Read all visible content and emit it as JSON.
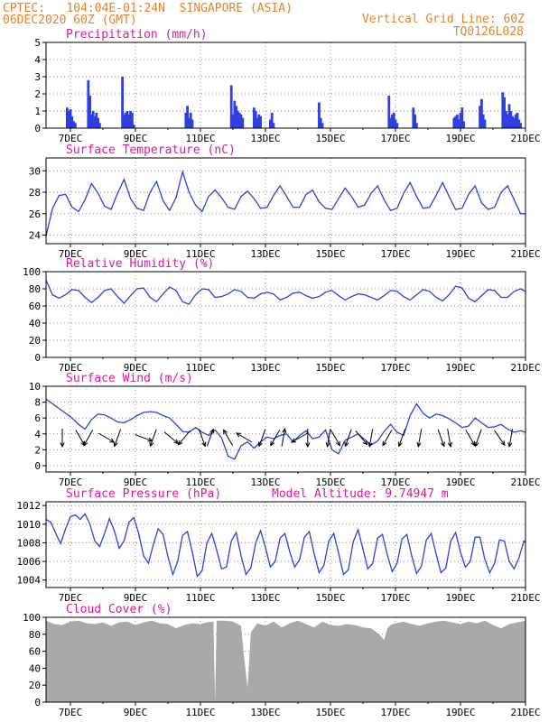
{
  "header": {
    "line1_left": "CPTEC:   104:04E-01:24N  SINGAPORE (ASIA)",
    "line2_left": "06DEC2020 60Z (GMT)",
    "line1_right": "Vertical Grid Line: 60Z",
    "line2_right": "TQ0126L028",
    "model_altitude": "Model Altitude: 9.74947 m"
  },
  "colors": {
    "header": "#e8822c",
    "title": "#e0179e",
    "line": "#2f3fe0",
    "bar": "#2f3fe0",
    "cloud": "#a9a9a9",
    "grid": "#8a8a8a"
  },
  "x_axis": {
    "tick_labels": [
      "7DEC",
      "9DEC",
      "11DEC",
      "13DEC",
      "15DEC",
      "17DEC",
      "19DEC",
      "21DEC"
    ],
    "tick_days": [
      7,
      9,
      11,
      13,
      15,
      17,
      19,
      21
    ],
    "start_day": 6.25,
    "end_day": 21.0
  },
  "chart_data": [
    {
      "type": "bar",
      "title": "Precipitation (mm/h)",
      "ylim": [
        0,
        5
      ],
      "yticks": [
        0,
        1,
        2,
        3,
        4,
        5
      ],
      "x": [
        6.9,
        6.95,
        7.0,
        7.05,
        7.1,
        7.15,
        7.55,
        7.6,
        7.65,
        7.7,
        7.75,
        7.8,
        7.85,
        7.9,
        8.6,
        8.65,
        8.7,
        8.75,
        8.8,
        8.85,
        8.9,
        8.95,
        10.55,
        10.6,
        10.65,
        10.7,
        10.75,
        11.95,
        12.0,
        12.05,
        12.1,
        12.15,
        12.2,
        12.25,
        12.3,
        12.65,
        12.7,
        12.75,
        12.8,
        12.85,
        13.15,
        13.2,
        13.25,
        14.65,
        14.7,
        14.75,
        16.8,
        16.85,
        16.9,
        16.95,
        17.0,
        17.05,
        17.55,
        17.6,
        17.65,
        18.8,
        18.85,
        18.9,
        18.95,
        19.0,
        19.05,
        19.1,
        19.6,
        19.65,
        19.7,
        19.75,
        20.3,
        20.35,
        20.4,
        20.45,
        20.5,
        20.55,
        20.6,
        20.65,
        20.7,
        20.75,
        20.8,
        20.85
      ],
      "values": [
        1.2,
        1.0,
        1.1,
        0.7,
        0.4,
        0.3,
        2.8,
        1.9,
        0.8,
        1.0,
        0.7,
        0.9,
        0.6,
        0.3,
        3.0,
        0.8,
        0.9,
        1.0,
        0.8,
        1.0,
        0.9,
        0.2,
        0.9,
        1.3,
        0.6,
        0.9,
        0.5,
        2.5,
        0.8,
        1.6,
        1.3,
        1.0,
        0.9,
        0.8,
        0.6,
        1.2,
        1.0,
        0.6,
        0.8,
        0.7,
        0.5,
        0.9,
        0.3,
        1.5,
        0.6,
        0.3,
        1.9,
        0.6,
        0.8,
        0.9,
        0.5,
        0.3,
        1.2,
        0.8,
        0.3,
        0.6,
        0.7,
        0.8,
        0.5,
        0.9,
        1.2,
        0.4,
        1.3,
        1.7,
        0.8,
        0.5,
        2.1,
        1.8,
        1.0,
        0.8,
        1.4,
        1.0,
        0.7,
        0.6,
        0.8,
        0.9,
        0.5,
        0.3
      ]
    },
    {
      "type": "line",
      "title": "Surface Temperature (nC)",
      "ylim": [
        23.2,
        31.2
      ],
      "yticks": [
        24,
        26,
        28,
        30
      ],
      "x": [
        6.25,
        6.45,
        6.65,
        6.85,
        7.05,
        7.25,
        7.45,
        7.65,
        7.85,
        8.05,
        8.25,
        8.45,
        8.65,
        8.85,
        9.05,
        9.25,
        9.45,
        9.65,
        9.85,
        10.05,
        10.25,
        10.45,
        10.65,
        10.85,
        11.05,
        11.25,
        11.45,
        11.65,
        11.85,
        12.05,
        12.25,
        12.45,
        12.65,
        12.85,
        13.05,
        13.25,
        13.45,
        13.65,
        13.85,
        14.05,
        14.25,
        14.45,
        14.65,
        14.85,
        15.05,
        15.25,
        15.45,
        15.65,
        15.85,
        16.05,
        16.25,
        16.45,
        16.65,
        16.85,
        17.05,
        17.25,
        17.45,
        17.65,
        17.85,
        18.05,
        18.25,
        18.45,
        18.65,
        18.85,
        19.05,
        19.25,
        19.45,
        19.65,
        19.85,
        20.05,
        20.25,
        20.45,
        20.65,
        20.85,
        21.0
      ],
      "values": [
        23.9,
        26.5,
        27.7,
        27.8,
        26.6,
        26.2,
        27.3,
        28.8,
        27.9,
        26.7,
        26.4,
        27.9,
        29.2,
        27.4,
        26.5,
        26.3,
        28.0,
        29.0,
        27.2,
        26.3,
        27.5,
        29.9,
        28.0,
        26.8,
        26.2,
        27.6,
        28.2,
        27.5,
        26.6,
        26.4,
        27.6,
        28.1,
        27.4,
        26.5,
        26.6,
        27.7,
        28.6,
        27.6,
        26.6,
        26.6,
        27.8,
        28.2,
        27.1,
        26.5,
        26.4,
        27.4,
        28.4,
        27.6,
        26.6,
        26.8,
        27.9,
        28.6,
        27.3,
        26.3,
        26.5,
        27.9,
        28.9,
        27.6,
        26.5,
        26.6,
        27.7,
        28.9,
        27.6,
        26.4,
        26.5,
        27.8,
        28.6,
        27.0,
        26.4,
        26.6,
        28.0,
        28.6,
        27.3,
        26.0,
        26.0
      ]
    },
    {
      "type": "line",
      "title": "Relative Humidity (%)",
      "ylim": [
        0,
        100
      ],
      "yticks": [
        0,
        20,
        40,
        60,
        80,
        100
      ],
      "x": [
        6.25,
        6.45,
        6.65,
        6.85,
        7.05,
        7.25,
        7.45,
        7.65,
        7.85,
        8.05,
        8.25,
        8.45,
        8.65,
        8.85,
        9.05,
        9.25,
        9.45,
        9.65,
        9.85,
        10.05,
        10.25,
        10.45,
        10.65,
        10.85,
        11.05,
        11.25,
        11.45,
        11.65,
        11.85,
        12.05,
        12.25,
        12.45,
        12.65,
        12.85,
        13.05,
        13.25,
        13.45,
        13.65,
        13.85,
        14.05,
        14.25,
        14.45,
        14.65,
        14.85,
        15.05,
        15.25,
        15.45,
        15.65,
        15.85,
        16.05,
        16.25,
        16.45,
        16.65,
        16.85,
        17.05,
        17.25,
        17.45,
        17.65,
        17.85,
        18.05,
        18.25,
        18.45,
        18.65,
        18.85,
        19.05,
        19.25,
        19.45,
        19.65,
        19.85,
        20.05,
        20.25,
        20.45,
        20.65,
        20.85,
        21.0
      ],
      "values": [
        90,
        73,
        69,
        73,
        79,
        78,
        70,
        64,
        70,
        78,
        80,
        71,
        63,
        72,
        80,
        81,
        70,
        65,
        74,
        82,
        78,
        65,
        62,
        73,
        80,
        79,
        70,
        71,
        74,
        79,
        77,
        70,
        69,
        74,
        76,
        74,
        67,
        70,
        75,
        76,
        72,
        69,
        71,
        76,
        78,
        72,
        67,
        71,
        74,
        73,
        70,
        67,
        72,
        78,
        77,
        71,
        67,
        73,
        79,
        77,
        70,
        66,
        73,
        83,
        81,
        69,
        65,
        72,
        79,
        78,
        70,
        70,
        77,
        80,
        77
      ]
    },
    {
      "type": "line",
      "title": "Surface Wind (m/s)",
      "ylim": [
        -0.8,
        10
      ],
      "yticks": [
        0,
        2,
        4,
        6,
        8,
        10
      ],
      "x": [
        6.25,
        6.45,
        6.65,
        6.85,
        7.05,
        7.25,
        7.45,
        7.65,
        7.85,
        8.05,
        8.25,
        8.45,
        8.65,
        8.85,
        9.05,
        9.25,
        9.45,
        9.65,
        9.85,
        10.05,
        10.25,
        10.45,
        10.65,
        10.85,
        11.05,
        11.25,
        11.45,
        11.65,
        11.85,
        12.05,
        12.25,
        12.45,
        12.65,
        12.85,
        13.05,
        13.25,
        13.45,
        13.65,
        13.85,
        14.05,
        14.25,
        14.45,
        14.65,
        14.85,
        15.05,
        15.25,
        15.45,
        15.65,
        15.85,
        16.05,
        16.25,
        16.45,
        16.65,
        16.85,
        17.05,
        17.25,
        17.45,
        17.65,
        17.85,
        18.05,
        18.25,
        18.45,
        18.65,
        18.85,
        19.05,
        19.25,
        19.45,
        19.65,
        19.85,
        20.05,
        20.25,
        20.45,
        20.65,
        20.85,
        21.0
      ],
      "values": [
        8.4,
        7.8,
        7.2,
        6.6,
        6.0,
        5.2,
        4.6,
        5.8,
        6.5,
        6.4,
        6.0,
        5.5,
        5.4,
        5.8,
        6.3,
        6.7,
        6.8,
        6.7,
        6.3,
        6.0,
        5.2,
        4.3,
        4.2,
        4.8,
        4.2,
        3.8,
        4.5,
        3.5,
        1.2,
        0.8,
        2.5,
        3.0,
        2.2,
        3.0,
        3.6,
        3.4,
        3.8,
        4.0,
        3.0,
        3.8,
        4.4,
        3.4,
        3.6,
        4.5,
        2.0,
        1.5,
        3.2,
        3.6,
        4.0,
        3.3,
        2.6,
        3.1,
        4.3,
        5.2,
        4.2,
        3.8,
        6.3,
        7.8,
        6.6,
        6.0,
        6.5,
        6.3,
        5.9,
        5.4,
        4.8,
        5.0,
        6.0,
        5.4,
        4.8,
        4.9,
        5.2,
        4.6,
        4.2,
        4.4,
        4.2
      ],
      "arrows": [
        {
          "x": 6.75,
          "dir": 180
        },
        {
          "x": 7.3,
          "dir": 150
        },
        {
          "x": 7.55,
          "dir": 210
        },
        {
          "x": 8.1,
          "dir": 120
        },
        {
          "x": 8.45,
          "dir": 200
        },
        {
          "x": 9.25,
          "dir": 110
        },
        {
          "x": 9.55,
          "dir": 200
        },
        {
          "x": 10.1,
          "dir": 130
        },
        {
          "x": 10.5,
          "dir": 220
        },
        {
          "x": 11.05,
          "dir": 160
        },
        {
          "x": 11.3,
          "dir": 20
        },
        {
          "x": 11.85,
          "dir": 330
        },
        {
          "x": 12.35,
          "dir": 300
        },
        {
          "x": 12.9,
          "dir": 200
        },
        {
          "x": 13.3,
          "dir": 210
        },
        {
          "x": 13.55,
          "dir": 10
        },
        {
          "x": 14.05,
          "dir": 240
        },
        {
          "x": 14.3,
          "dir": 180
        },
        {
          "x": 14.95,
          "dir": 190
        },
        {
          "x": 15.15,
          "dir": 150
        },
        {
          "x": 15.55,
          "dir": 200
        },
        {
          "x": 15.95,
          "dir": 140
        },
        {
          "x": 16.25,
          "dir": 190
        },
        {
          "x": 16.75,
          "dir": 210
        },
        {
          "x": 17.2,
          "dir": 200
        },
        {
          "x": 17.75,
          "dir": 190
        },
        {
          "x": 18.4,
          "dir": 160
        },
        {
          "x": 18.65,
          "dir": 170
        },
        {
          "x": 19.3,
          "dir": 150
        },
        {
          "x": 19.55,
          "dir": 200
        },
        {
          "x": 20.2,
          "dir": 145
        },
        {
          "x": 20.55,
          "dir": 190
        }
      ]
    },
    {
      "type": "line",
      "title": "Surface Pressure (hPa)",
      "ylim": [
        1003.2,
        1012.4
      ],
      "yticks": [
        1004,
        1006,
        1008,
        1010,
        1012
      ],
      "x": [
        6.25,
        6.4,
        6.55,
        6.7,
        6.85,
        7.0,
        7.15,
        7.3,
        7.45,
        7.6,
        7.75,
        7.9,
        8.05,
        8.2,
        8.35,
        8.5,
        8.65,
        8.8,
        8.95,
        9.1,
        9.25,
        9.4,
        9.55,
        9.7,
        9.85,
        10.0,
        10.15,
        10.3,
        10.45,
        10.6,
        10.75,
        10.9,
        11.05,
        11.2,
        11.35,
        11.5,
        11.65,
        11.8,
        11.95,
        12.1,
        12.25,
        12.4,
        12.55,
        12.7,
        12.85,
        13.0,
        13.15,
        13.3,
        13.45,
        13.6,
        13.75,
        13.9,
        14.05,
        14.2,
        14.35,
        14.5,
        14.65,
        14.8,
        14.95,
        15.1,
        15.25,
        15.4,
        15.55,
        15.7,
        15.85,
        16.0,
        16.15,
        16.3,
        16.45,
        16.6,
        16.75,
        16.9,
        17.05,
        17.2,
        17.35,
        17.5,
        17.65,
        17.8,
        17.95,
        18.1,
        18.25,
        18.4,
        18.55,
        18.7,
        18.85,
        19.0,
        19.15,
        19.3,
        19.45,
        19.6,
        19.75,
        19.9,
        20.05,
        20.2,
        20.35,
        20.5,
        20.65,
        20.8,
        20.95,
        21.0
      ],
      "values": [
        1010.5,
        1010.2,
        1009.0,
        1007.9,
        1009.5,
        1010.8,
        1011.0,
        1010.5,
        1011.1,
        1010.0,
        1008.2,
        1007.6,
        1009.0,
        1010.6,
        1009.3,
        1007.4,
        1008.2,
        1010.2,
        1010.7,
        1009.0,
        1006.6,
        1005.8,
        1007.8,
        1009.5,
        1008.9,
        1006.5,
        1004.6,
        1006.0,
        1008.8,
        1009.2,
        1007.0,
        1004.4,
        1005.0,
        1008.0,
        1009.0,
        1007.2,
        1005.2,
        1005.4,
        1008.2,
        1009.1,
        1006.6,
        1004.6,
        1005.3,
        1008.0,
        1009.3,
        1007.5,
        1005.4,
        1006.0,
        1008.5,
        1009.0,
        1007.0,
        1005.4,
        1006.2,
        1008.6,
        1009.2,
        1006.8,
        1004.8,
        1005.6,
        1008.2,
        1009.0,
        1006.9,
        1004.6,
        1005.1,
        1008.1,
        1009.4,
        1007.3,
        1005.2,
        1005.8,
        1008.5,
        1008.9,
        1006.7,
        1004.9,
        1005.8,
        1008.4,
        1008.9,
        1006.6,
        1004.7,
        1005.5,
        1008.3,
        1009.0,
        1006.8,
        1004.8,
        1005.3,
        1008.2,
        1009.1,
        1007.0,
        1005.4,
        1006.0,
        1008.6,
        1008.6,
        1006.2,
        1004.8,
        1005.8,
        1008.3,
        1008.2,
        1006.0,
        1005.2,
        1006.4,
        1008.2,
        1008.0
      ]
    },
    {
      "type": "area",
      "title": "Cloud Cover (%)",
      "ylim": [
        0,
        100
      ],
      "yticks": [
        0,
        20,
        40,
        60,
        80,
        100
      ],
      "x": [
        6.25,
        6.5,
        6.75,
        7.0,
        7.25,
        7.5,
        7.75,
        8.0,
        8.25,
        8.5,
        8.75,
        9.0,
        9.25,
        9.5,
        9.75,
        10.0,
        10.25,
        10.5,
        10.75,
        11.0,
        11.2,
        11.4,
        11.45,
        11.5,
        11.75,
        12.0,
        12.25,
        12.35,
        12.45,
        12.55,
        12.75,
        13.0,
        13.25,
        13.5,
        13.75,
        14.0,
        14.25,
        14.5,
        14.75,
        15.0,
        15.25,
        15.5,
        15.75,
        16.0,
        16.25,
        16.5,
        16.65,
        16.75,
        16.85,
        17.0,
        17.25,
        17.5,
        17.75,
        18.0,
        18.25,
        18.5,
        18.75,
        19.0,
        19.25,
        19.5,
        19.75,
        20.0,
        20.25,
        20.5,
        20.75,
        21.0
      ],
      "values": [
        96,
        92,
        91,
        95,
        96,
        93,
        92,
        94,
        90,
        94,
        95,
        91,
        94,
        96,
        93,
        92,
        87,
        91,
        93,
        92,
        94,
        95,
        0,
        96,
        96,
        95,
        90,
        50,
        17,
        82,
        93,
        90,
        95,
        88,
        93,
        96,
        92,
        88,
        95,
        91,
        90,
        92,
        91,
        88,
        87,
        80,
        73,
        87,
        91,
        93,
        95,
        92,
        90,
        93,
        95,
        96,
        94,
        92,
        95,
        93,
        96,
        91,
        87,
        92,
        94,
        96
      ]
    }
  ]
}
